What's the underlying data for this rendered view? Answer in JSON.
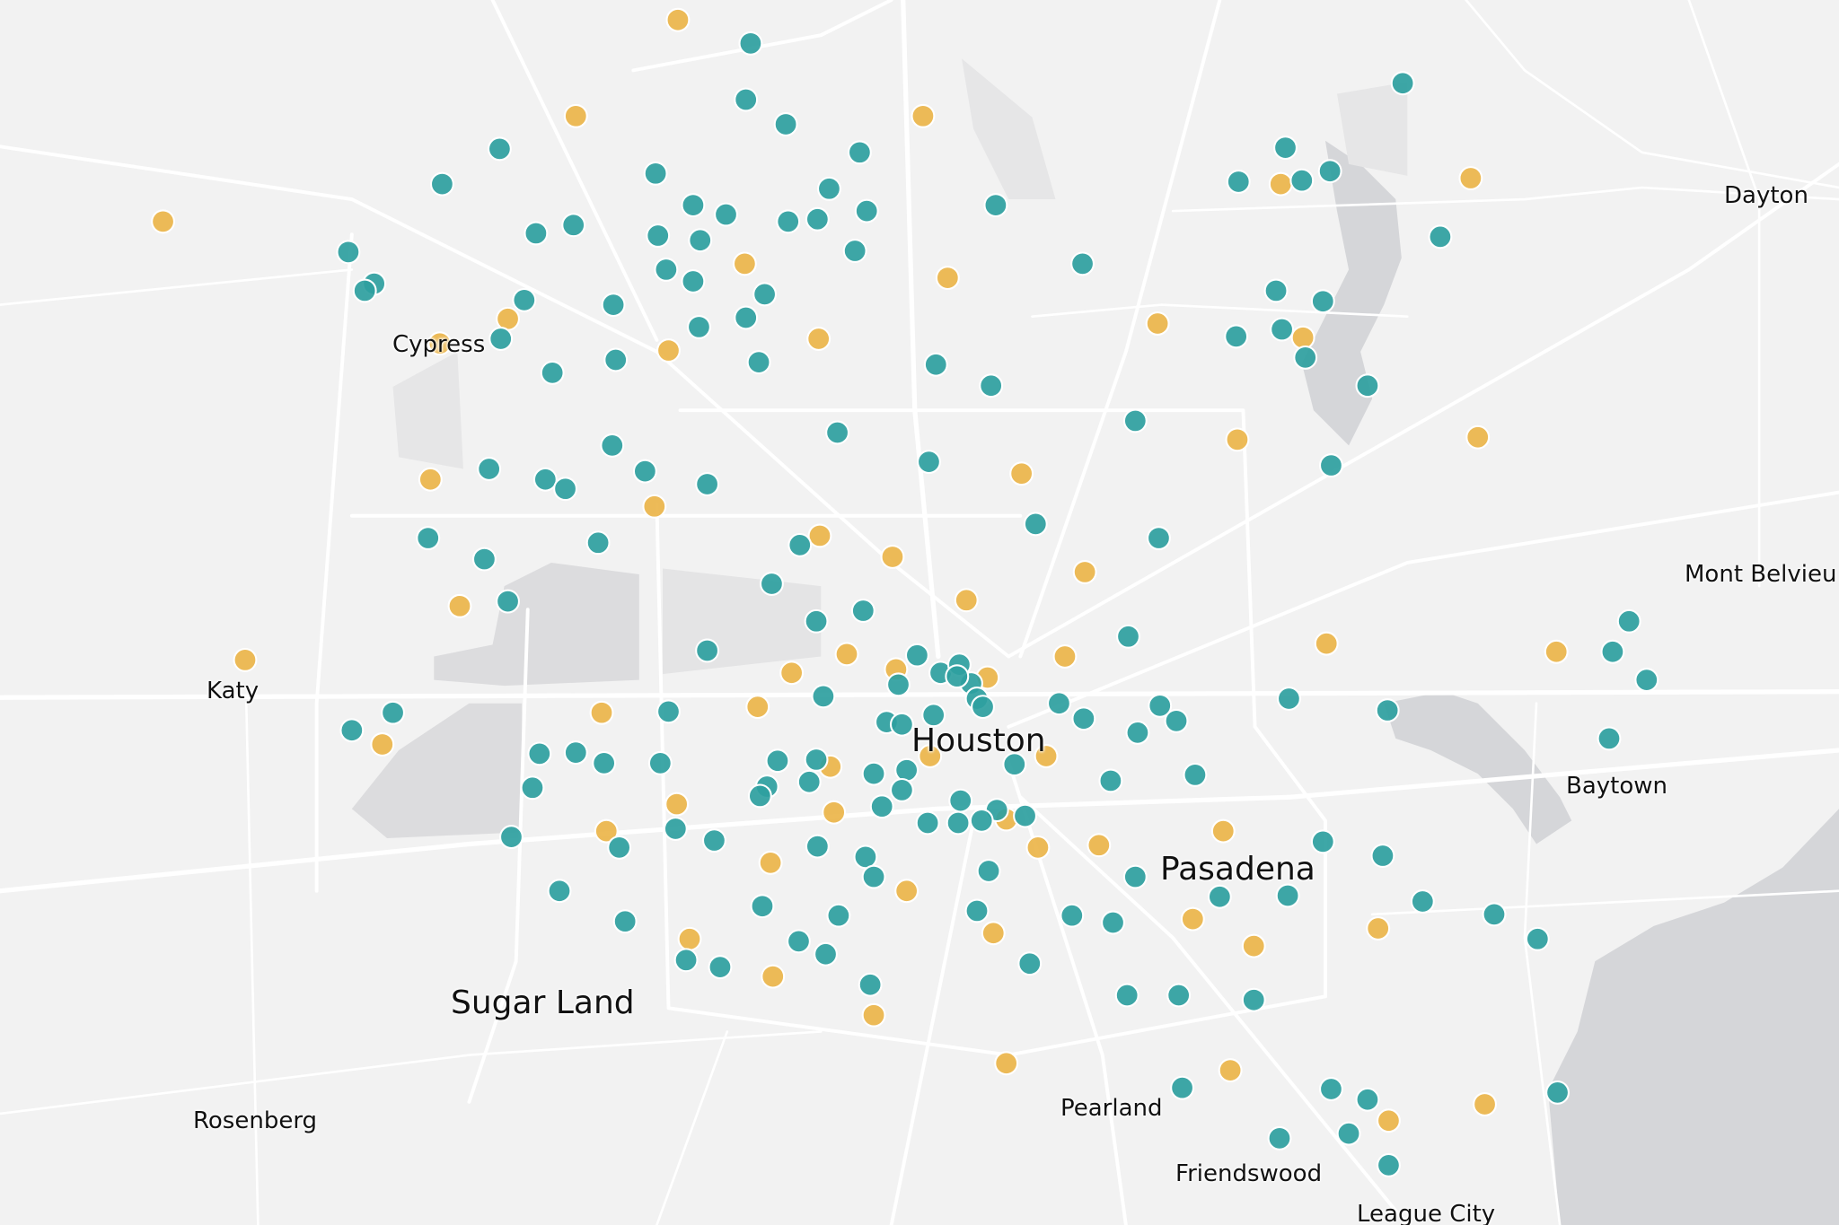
{
  "map": {
    "colors": {
      "background": "#f2f2f2",
      "water": "#d5d6d9",
      "park": "#e2e2e3",
      "road": "#ffffff",
      "marker_teal": "#2e9fa0",
      "marker_orange": "#ebb54a"
    },
    "labels": {
      "dayton": "Dayton",
      "cypress": "Cypress",
      "mont_belvieu": "Mont Belvieu",
      "katy": "Katy",
      "houston": "Houston",
      "baytown": "Baytown",
      "pasadena": "Pasadena",
      "sugar_land": "Sugar Land",
      "pearland": "Pearland",
      "rosenberg": "Rosenberg",
      "friendswood": "Friendswood",
      "league_city": "League City"
    },
    "marker_categories": [
      "teal",
      "orange"
    ]
  }
}
